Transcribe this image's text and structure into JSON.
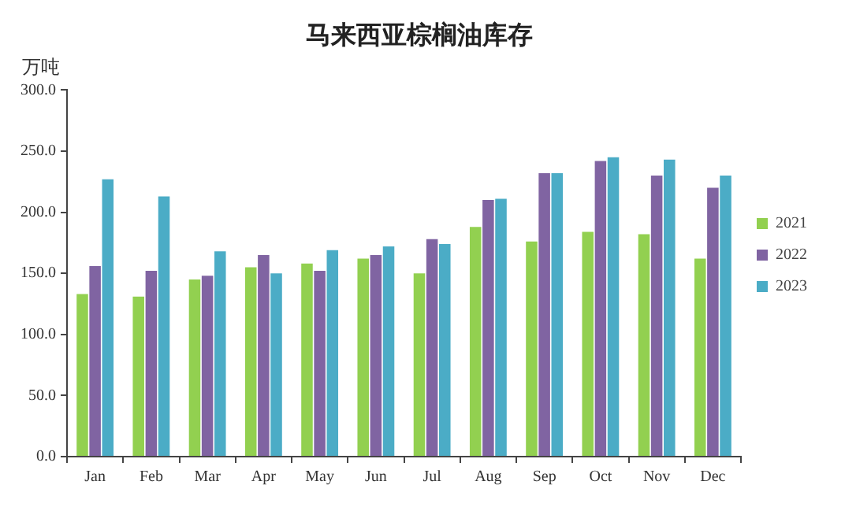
{
  "chart_data": {
    "type": "bar",
    "title": "马来西亚棕榈油库存",
    "ylabel": "万吨",
    "categories": [
      "Jan",
      "Feb",
      "Mar",
      "Apr",
      "May",
      "Jun",
      "Jul",
      "Aug",
      "Sep",
      "Oct",
      "Nov",
      "Dec"
    ],
    "series": [
      {
        "name": "2021",
        "color": "#92d050",
        "values": [
          133,
          131,
          145,
          155,
          158,
          162,
          150,
          188,
          176,
          184,
          182,
          162
        ]
      },
      {
        "name": "2022",
        "color": "#8064a2",
        "values": [
          156,
          152,
          148,
          165,
          152,
          165,
          178,
          210,
          232,
          242,
          230,
          220
        ]
      },
      {
        "name": "2023",
        "color": "#4bacc6",
        "values": [
          227,
          213,
          168,
          150,
          169,
          172,
          174,
          211,
          232,
          245,
          243,
          230
        ]
      }
    ],
    "ylim": [
      0,
      300
    ],
    "yticks": [
      {
        "value": 0,
        "label": "0.0"
      },
      {
        "value": 50,
        "label": "50.0"
      },
      {
        "value": 100,
        "label": "100.0"
      },
      {
        "value": 150,
        "label": "150.0"
      },
      {
        "value": 200,
        "label": "200.0"
      },
      {
        "value": 250,
        "label": "250.0"
      },
      {
        "value": 300,
        "label": "300.0"
      }
    ],
    "grid": false,
    "legend": "right"
  }
}
